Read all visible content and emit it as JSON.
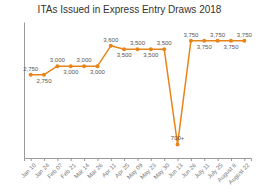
{
  "chart_data": {
    "type": "line",
    "title": "ITAs Issued in Express Entry Draws 2018",
    "categories": [
      "Jan 10",
      "Jan 24",
      "Feb 07",
      "Feb 21",
      "Mar 14",
      "Mar 26",
      "Apr 11",
      "Apr 25",
      "May 09",
      "May 23",
      "May 30",
      "Jun 13",
      "Jun 26",
      "July 11",
      "July 25",
      "August 8",
      "August 22"
    ],
    "values": [
      2750,
      2750,
      3000,
      3000,
      3000,
      3000,
      3600,
      3500,
      3500,
      3500,
      3500,
      700,
      3750,
      3750,
      3750,
      3750,
      3750
    ],
    "value_labels": [
      "2,750",
      "2,750",
      "3,000",
      "3,000",
      "3,000",
      "3,000",
      "3,600",
      "3,500",
      "3,500",
      "3,500",
      "3,500",
      "700+",
      "3,750",
      "3,750",
      "3,750",
      "3,750",
      "3,750"
    ],
    "data_labels": true,
    "color": "#e8851a",
    "marker": "circle",
    "ylim": [
      300,
      4300
    ],
    "yticks": [],
    "grid": false,
    "tick_labels": "x"
  }
}
